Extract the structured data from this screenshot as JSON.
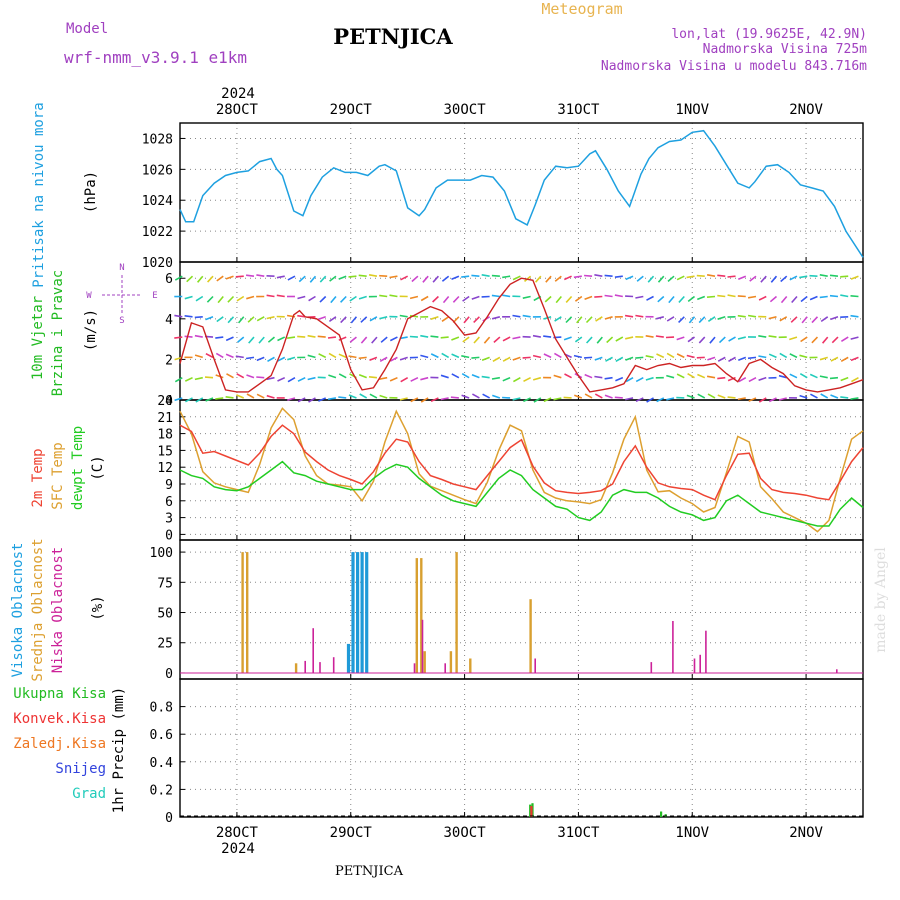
{
  "header": {
    "model_label": "Model",
    "model_name": "wrf-nmm_v3.9.1 e1km",
    "station": "PETNJICA",
    "product": "Meteogram",
    "lonlat": "lon,lat (19.9625E, 42.9N)",
    "elevation": "Nadmorska Visina 725m",
    "model_elevation": "Nadmorska Visina u modelu 843.716m"
  },
  "footer": {
    "station": "PETNJICA",
    "watermark": "made by Angel"
  },
  "colors": {
    "pressure": "#1ea0e0",
    "t2m": "#ee4433",
    "tsfc": "#dda030",
    "dewpt": "#22cc22",
    "high_cloud": "#1f9ad8",
    "mid_cloud": "#d8a030",
    "low_cloud": "#cc2299",
    "total_precip": "#22bb22",
    "conv_precip": "#ee3333",
    "frozen_precip": "#ee7722",
    "snow": "#3344dd",
    "graupel": "#22ccbb"
  },
  "chart_data": [
    {
      "type": "line",
      "panel": "pressure",
      "ylabel_side": "Pritisak na nivou mora",
      "ylabel": "(hPa)",
      "ylim": [
        1020,
        1029
      ],
      "yticks": [
        1020,
        1022,
        1024,
        1026,
        1028
      ],
      "x_top_year": "2024",
      "x_tick_labels": [
        "28OCT",
        "29OCT",
        "30OCT",
        "31OCT",
        "1NOV",
        "2NOV"
      ],
      "x_bottom_year": "2024",
      "x_range_days": [
        27.5,
        33.5
      ],
      "series": [
        {
          "name": "Pritisak na nivou mora",
          "x": [
            27.5,
            27.55,
            27.62,
            27.7,
            27.8,
            27.9,
            28.0,
            28.1,
            28.2,
            28.3,
            28.35,
            28.4,
            28.5,
            28.58,
            28.65,
            28.75,
            28.85,
            28.95,
            29.05,
            29.15,
            29.25,
            29.3,
            29.4,
            29.5,
            29.6,
            29.65,
            29.75,
            29.85,
            29.95,
            30.05,
            30.15,
            30.25,
            30.35,
            30.45,
            30.55,
            30.62,
            30.7,
            30.8,
            30.9,
            31.0,
            31.1,
            31.15,
            31.25,
            31.35,
            31.45,
            31.55,
            31.62,
            31.7,
            31.8,
            31.9,
            32.0,
            32.1,
            32.2,
            32.3,
            32.4,
            32.5,
            32.55,
            32.65,
            32.75,
            32.85,
            32.95,
            33.05,
            33.15,
            33.25,
            33.35,
            33.5
          ],
          "y": [
            1023.4,
            1022.6,
            1022.6,
            1024.3,
            1025.1,
            1025.6,
            1025.8,
            1025.9,
            1026.5,
            1026.7,
            1026.0,
            1025.6,
            1023.3,
            1023.0,
            1024.3,
            1025.5,
            1026.1,
            1025.8,
            1025.8,
            1025.6,
            1026.2,
            1026.3,
            1025.9,
            1023.5,
            1023.0,
            1023.4,
            1024.8,
            1025.3,
            1025.3,
            1025.3,
            1025.6,
            1025.5,
            1024.6,
            1022.8,
            1022.4,
            1023.7,
            1025.3,
            1026.2,
            1026.1,
            1026.2,
            1027.0,
            1027.2,
            1026.0,
            1024.6,
            1023.6,
            1025.7,
            1026.7,
            1027.4,
            1027.8,
            1027.9,
            1028.4,
            1028.5,
            1027.5,
            1026.3,
            1025.1,
            1024.8,
            1025.2,
            1026.2,
            1026.3,
            1025.8,
            1025.0,
            1024.8,
            1024.6,
            1023.6,
            1022.0,
            1020.3
          ]
        }
      ]
    },
    {
      "type": "line",
      "panel": "wind",
      "ylabel_side": [
        "10m Vjetar",
        "Brzina i Pravac"
      ],
      "ylabel": "(m/s)",
      "direction_labels": [
        "N",
        "E",
        "W",
        "S"
      ],
      "ylim": [
        0,
        6.8
      ],
      "yticks": [
        0,
        2,
        4,
        6
      ],
      "series": [
        {
          "name": "10m Vjetar brzina",
          "x": [
            27.5,
            27.6,
            27.7,
            27.8,
            27.9,
            28.0,
            28.1,
            28.2,
            28.3,
            28.4,
            28.5,
            28.55,
            28.6,
            28.7,
            28.8,
            28.9,
            29.0,
            29.1,
            29.2,
            29.3,
            29.4,
            29.5,
            29.6,
            29.7,
            29.8,
            29.9,
            30.0,
            30.1,
            30.2,
            30.3,
            30.4,
            30.5,
            30.6,
            30.7,
            30.8,
            30.9,
            31.0,
            31.1,
            31.2,
            31.3,
            31.4,
            31.5,
            31.6,
            31.7,
            31.8,
            31.9,
            32.0,
            32.1,
            32.2,
            32.3,
            32.4,
            32.5,
            32.6,
            32.7,
            32.8,
            32.9,
            33.0,
            33.1,
            33.2,
            33.3,
            33.4,
            33.5
          ],
          "y": [
            1.8,
            3.8,
            3.6,
            2.0,
            0.5,
            0.4,
            0.4,
            0.8,
            1.2,
            2.5,
            4.2,
            4.4,
            4.1,
            4.0,
            3.6,
            3.2,
            1.5,
            0.5,
            0.6,
            1.5,
            2.5,
            4.0,
            4.3,
            4.6,
            4.4,
            3.9,
            3.2,
            3.3,
            4.1,
            5.0,
            5.7,
            6.0,
            5.9,
            4.5,
            3.0,
            2.1,
            1.2,
            0.4,
            0.5,
            0.6,
            0.8,
            1.7,
            1.5,
            1.7,
            1.8,
            1.6,
            1.7,
            1.7,
            1.8,
            1.3,
            0.9,
            1.8,
            2.0,
            1.6,
            1.3,
            0.7,
            0.5,
            0.4,
            0.5,
            0.6,
            0.8,
            1.0
          ]
        }
      ]
    },
    {
      "type": "line",
      "panel": "temperature",
      "ylabel_side": [
        "2m Temp",
        "SFC Temp",
        "dewpt Temp"
      ],
      "ylabel": "(C)",
      "ylim": [
        -1,
        24
      ],
      "yticks": [
        0,
        3,
        6,
        9,
        12,
        15,
        18,
        21,
        24
      ],
      "series": [
        {
          "name": "2m Temp",
          "x": [
            27.5,
            27.6,
            27.7,
            27.8,
            27.9,
            28.0,
            28.1,
            28.2,
            28.3,
            28.4,
            28.5,
            28.6,
            28.7,
            28.8,
            28.9,
            29.0,
            29.1,
            29.2,
            29.3,
            29.4,
            29.5,
            29.6,
            29.7,
            29.8,
            29.9,
            30.0,
            30.1,
            30.2,
            30.3,
            30.4,
            30.5,
            30.6,
            30.7,
            30.8,
            30.9,
            31.0,
            31.1,
            31.2,
            31.3,
            31.4,
            31.5,
            31.6,
            31.7,
            31.8,
            31.9,
            32.0,
            32.1,
            32.2,
            32.3,
            32.4,
            32.5,
            32.6,
            32.7,
            32.8,
            32.9,
            33.0,
            33.1,
            33.2,
            33.3,
            33.4,
            33.5
          ],
          "y": [
            19.5,
            18.4,
            14.5,
            14.8,
            14.0,
            13.2,
            12.4,
            14.5,
            17.5,
            19.5,
            18.0,
            14.7,
            13.0,
            11.5,
            10.5,
            9.8,
            9.0,
            11.2,
            14.5,
            17.0,
            16.5,
            13.0,
            10.5,
            9.8,
            9.0,
            8.5,
            8.0,
            10.5,
            13.0,
            15.5,
            16.9,
            12.2,
            9.2,
            7.8,
            7.5,
            7.3,
            7.5,
            7.8,
            9.0,
            13.0,
            15.8,
            12.0,
            9.2,
            8.5,
            8.2,
            8.0,
            7.0,
            6.2,
            10.5,
            14.3,
            14.5,
            10.0,
            8.0,
            7.5,
            7.3,
            7.0,
            6.5,
            6.2,
            9.5,
            13.0,
            15.5
          ]
        },
        {
          "name": "SFC Temp",
          "x": [
            27.5,
            27.6,
            27.7,
            27.8,
            27.9,
            28.0,
            28.1,
            28.2,
            28.3,
            28.4,
            28.5,
            28.6,
            28.7,
            28.8,
            28.9,
            29.0,
            29.1,
            29.2,
            29.3,
            29.4,
            29.5,
            29.6,
            29.7,
            29.8,
            29.9,
            30.0,
            30.1,
            30.2,
            30.3,
            30.4,
            30.5,
            30.6,
            30.7,
            30.8,
            30.9,
            31.0,
            31.1,
            31.2,
            31.3,
            31.4,
            31.5,
            31.6,
            31.7,
            31.8,
            31.9,
            32.0,
            32.1,
            32.2,
            32.3,
            32.4,
            32.5,
            32.6,
            32.7,
            32.8,
            32.9,
            33.0,
            33.1,
            33.2,
            33.3,
            33.4,
            33.5
          ],
          "y": [
            22.0,
            18.0,
            11.2,
            9.2,
            8.5,
            8.0,
            7.5,
            12.5,
            19.0,
            22.5,
            20.5,
            14.0,
            10.5,
            9.0,
            8.8,
            8.5,
            6.0,
            9.5,
            16.5,
            22.0,
            18.0,
            10.8,
            8.6,
            7.8,
            7.0,
            6.2,
            5.5,
            9.3,
            15.0,
            19.5,
            18.5,
            11.5,
            7.5,
            6.5,
            6.0,
            5.8,
            5.5,
            6.2,
            11.0,
            17.0,
            21.0,
            11.5,
            7.6,
            7.8,
            6.5,
            5.5,
            4.0,
            4.8,
            11.0,
            17.5,
            16.5,
            8.5,
            6.4,
            4.0,
            3.0,
            2.0,
            0.5,
            2.5,
            10.0,
            17.0,
            18.5
          ]
        },
        {
          "name": "dewpt Temp",
          "x": [
            27.5,
            27.6,
            27.7,
            27.8,
            27.9,
            28.0,
            28.1,
            28.2,
            28.3,
            28.4,
            28.5,
            28.6,
            28.7,
            28.8,
            28.9,
            29.0,
            29.1,
            29.2,
            29.3,
            29.4,
            29.5,
            29.6,
            29.7,
            29.8,
            29.9,
            30.0,
            30.1,
            30.2,
            30.3,
            30.4,
            30.5,
            30.6,
            30.7,
            30.8,
            30.9,
            31.0,
            31.1,
            31.2,
            31.3,
            31.4,
            31.5,
            31.6,
            31.7,
            31.8,
            31.9,
            32.0,
            32.1,
            32.2,
            32.3,
            32.4,
            32.5,
            32.6,
            32.7,
            32.8,
            32.9,
            33.0,
            33.1,
            33.2,
            33.3,
            33.4,
            33.5
          ],
          "y": [
            11.5,
            10.5,
            10.0,
            8.5,
            8.0,
            7.8,
            8.5,
            10.0,
            11.5,
            13.0,
            11.0,
            10.5,
            9.5,
            9.0,
            8.5,
            8.0,
            8.0,
            10.0,
            11.5,
            12.5,
            12.0,
            10.0,
            8.5,
            7.0,
            6.0,
            5.5,
            5.0,
            7.5,
            10.0,
            11.5,
            10.5,
            8.0,
            6.5,
            5.0,
            4.5,
            3.0,
            2.5,
            4.0,
            7.0,
            8.0,
            7.5,
            7.5,
            6.5,
            5.0,
            4.0,
            3.5,
            2.5,
            3.0,
            6.0,
            7.0,
            5.5,
            4.0,
            3.5,
            3.0,
            2.5,
            2.0,
            1.5,
            1.5,
            4.5,
            6.5,
            4.8
          ]
        }
      ]
    },
    {
      "type": "bar",
      "panel": "cloud",
      "ylabel_side": [
        "Visoka Oblacnost",
        "Srednja Oblacnost",
        "Niska Oblacnost"
      ],
      "ylabel": "(%)",
      "ylim": [
        -5,
        110
      ],
      "yticks": [
        0,
        25,
        50,
        75,
        100
      ],
      "series": [
        {
          "name": "Visoka Oblacnost",
          "x": [
            28.98,
            29.02,
            29.06,
            29.1,
            29.14
          ],
          "values": [
            24,
            100,
            100,
            100,
            100
          ]
        },
        {
          "name": "Srednja Oblacnost",
          "x": [
            28.05,
            28.09,
            28.52,
            29.58,
            29.62,
            29.65,
            29.88,
            29.93,
            30.05,
            30.58
          ],
          "values": [
            100,
            100,
            8,
            95,
            95,
            18,
            18,
            100,
            12,
            61
          ]
        },
        {
          "name": "Niska Oblacnost",
          "x": [
            28.6,
            28.67,
            28.73,
            28.85,
            29.56,
            29.63,
            29.83,
            30.62,
            31.64,
            31.83,
            32.02,
            32.07,
            32.12,
            33.27
          ],
          "values": [
            10,
            37,
            9,
            13,
            8,
            44,
            8,
            12,
            9,
            43,
            12,
            15,
            35,
            3
          ]
        }
      ]
    },
    {
      "type": "bar",
      "panel": "precip",
      "ylabel_side": [
        "Ukupna Kisa",
        "Konvek.Kisa",
        "Zaledj.Kisa",
        "Snijeg",
        "Grad"
      ],
      "ylabel": "1hr Precip (mm)",
      "ylim": [
        0,
        1.0
      ],
      "yticks": [
        0,
        0.2,
        0.4,
        0.6,
        0.8
      ],
      "series": [
        {
          "name": "Ukupna Kisa",
          "x": [
            30.58,
            30.6,
            31.73,
            31.77
          ],
          "values": [
            0.09,
            0.1,
            0.04,
            0.02
          ]
        },
        {
          "name": "Konvek.Kisa",
          "x": [
            30.58
          ],
          "values": [
            0.08
          ]
        }
      ]
    }
  ]
}
